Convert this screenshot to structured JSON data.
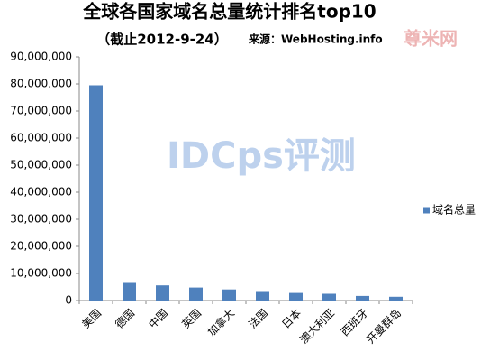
{
  "chart_data": {
    "type": "bar",
    "title": "全球各国家域名总量统计排名top10",
    "subtitle": "（截止2012-9-24）",
    "source": "来源：WebHosting.info",
    "watermarks": [
      "IDCps评测",
      "尊米网"
    ],
    "categories": [
      "美国",
      "德国",
      "中国",
      "英国",
      "加拿大",
      "法国",
      "日本",
      "澳大利亚",
      "西班牙",
      "开曼群岛"
    ],
    "series": [
      {
        "name": "域名总量",
        "color": "#4f81bd",
        "values": [
          79500000,
          6500000,
          5600000,
          4800000,
          4100000,
          3500000,
          2800000,
          2500000,
          1700000,
          1400000
        ]
      }
    ],
    "ylim": [
      0,
      90000000
    ],
    "yticks": [
      0,
      {
        "value": 10000000,
        "label": "10,000,000"
      },
      {
        "value": 20000000,
        "label": "20,000,000"
      },
      {
        "value": 30000000,
        "label": "30,000,000"
      },
      {
        "value": 40000000,
        "label": "40,000,000"
      },
      {
        "value": 50000000,
        "label": "50,000,000"
      },
      {
        "value": 60000000,
        "label": "60,000,000"
      },
      {
        "value": 70000000,
        "label": "70,000,000"
      },
      {
        "value": 80000000,
        "label": "80,000,000"
      },
      {
        "value": 90000000,
        "label": "90,000,000"
      }
    ],
    "grid": false,
    "legend": "right"
  }
}
